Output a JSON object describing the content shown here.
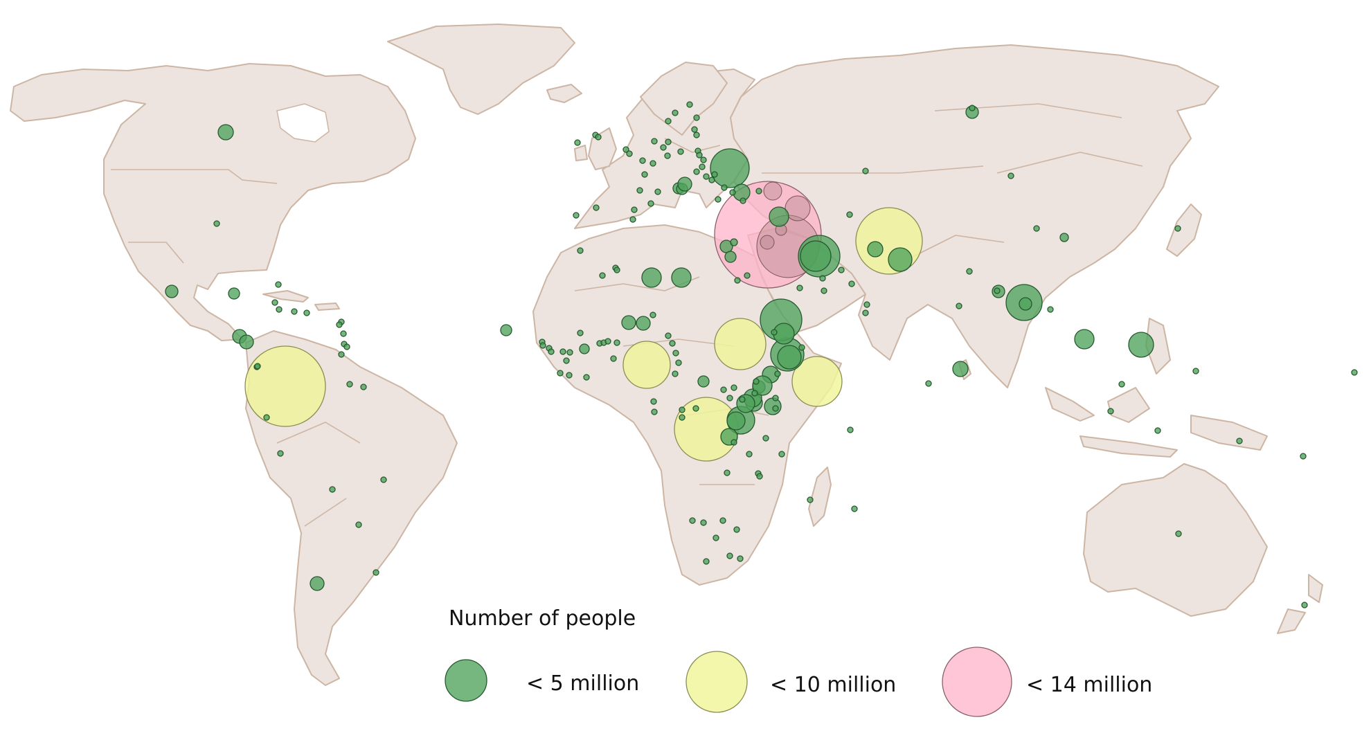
{
  "legend": {
    "title": "Number of people",
    "items": [
      {
        "label": "< 5 million",
        "tier": "small"
      },
      {
        "label": "< 10 million",
        "tier": "medium"
      },
      {
        "label": "< 14 million",
        "tier": "large"
      }
    ]
  },
  "colors": {
    "land": "#ede3df",
    "border": "#cdb5a4",
    "small_fill": "#4fa35c",
    "small_stroke": "#24592e",
    "medium_fill": "#eff59a",
    "medium_stroke": "#8a8c52",
    "large_fill": "#fdb3c9",
    "large_stroke": "#8a6068"
  }
}
